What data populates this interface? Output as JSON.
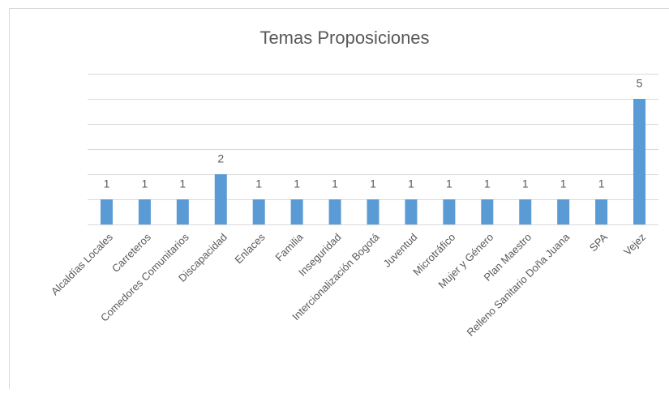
{
  "chart_data": {
    "type": "bar",
    "title": "Temas Proposiciones",
    "categories": [
      "Alcaldías Locales",
      "Carreteros",
      "Comedores Comunitarios",
      "Discapacidad",
      "Enlaces",
      "Familia",
      "Inseguridad",
      "Intercionalización Bogotá",
      "Juventud",
      "Microtráfico",
      "Mujer y Género",
      "Plan Maestro",
      "Relleno Sanitario Doña Juana",
      "SPA",
      "Vejez"
    ],
    "values": [
      1,
      1,
      1,
      2,
      1,
      1,
      1,
      1,
      1,
      1,
      1,
      1,
      1,
      1,
      5
    ],
    "color": "#5b9bd5",
    "ylim": [
      0,
      6
    ],
    "yticks": [
      0,
      1,
      2,
      3,
      4,
      5,
      6
    ],
    "grid": true,
    "data_labels": true
  }
}
